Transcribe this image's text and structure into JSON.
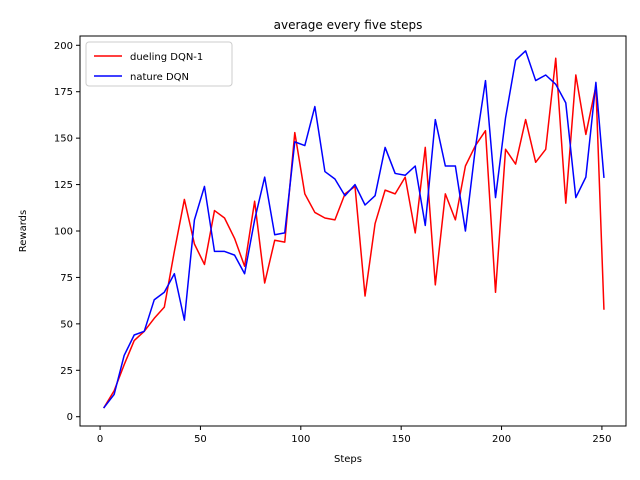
{
  "chart_data": {
    "type": "line",
    "title": "average every five steps",
    "xlabel": "Steps",
    "ylabel": "Rewards",
    "xlim": [
      -10,
      262
    ],
    "ylim": [
      -5,
      205
    ],
    "xticks": [
      0,
      50,
      100,
      150,
      200,
      250
    ],
    "yticks": [
      0,
      25,
      50,
      75,
      100,
      125,
      150,
      175,
      200
    ],
    "grid": false,
    "legend_position": "top-left",
    "series": [
      {
        "name": "dueling DQN-1",
        "color": "#ff0000",
        "x": [
          2,
          7,
          12,
          17,
          22,
          27,
          32,
          37,
          42,
          47,
          52,
          57,
          62,
          67,
          72,
          77,
          82,
          87,
          92,
          97,
          102,
          107,
          112,
          117,
          122,
          127,
          132,
          137,
          142,
          147,
          152,
          157,
          162,
          167,
          172,
          177,
          182,
          187,
          192,
          197,
          202,
          207,
          212,
          217,
          222,
          227,
          232,
          237,
          242,
          247,
          251
        ],
        "y": [
          5,
          14,
          28,
          41,
          46,
          53,
          59,
          89,
          117,
          93,
          82,
          111,
          107,
          96,
          81,
          116,
          72,
          95,
          94,
          153,
          120,
          110,
          107,
          106,
          120,
          124,
          65,
          104,
          122,
          120,
          129,
          99,
          145,
          71,
          120,
          106,
          135,
          146,
          154,
          67,
          144,
          136,
          160,
          137,
          144,
          193,
          115,
          184,
          152,
          178,
          58
        ]
      },
      {
        "name": "nature DQN",
        "color": "#0000ff",
        "x": [
          2,
          7,
          12,
          17,
          22,
          27,
          32,
          37,
          42,
          47,
          52,
          57,
          62,
          67,
          72,
          77,
          82,
          87,
          92,
          97,
          102,
          107,
          112,
          117,
          122,
          127,
          132,
          137,
          142,
          147,
          152,
          157,
          162,
          167,
          172,
          177,
          182,
          187,
          192,
          197,
          202,
          207,
          212,
          217,
          222,
          227,
          232,
          237,
          242,
          247,
          251
        ],
        "y": [
          5,
          12,
          33,
          44,
          46,
          63,
          67,
          77,
          52,
          106,
          124,
          89,
          89,
          87,
          77,
          106,
          129,
          98,
          99,
          148,
          146,
          167,
          132,
          128,
          119,
          125,
          114,
          119,
          145,
          131,
          130,
          135,
          103,
          160,
          135,
          135,
          100,
          145,
          181,
          118,
          161,
          192,
          197,
          181,
          184,
          179,
          169,
          118,
          129,
          180,
          129
        ]
      }
    ]
  }
}
